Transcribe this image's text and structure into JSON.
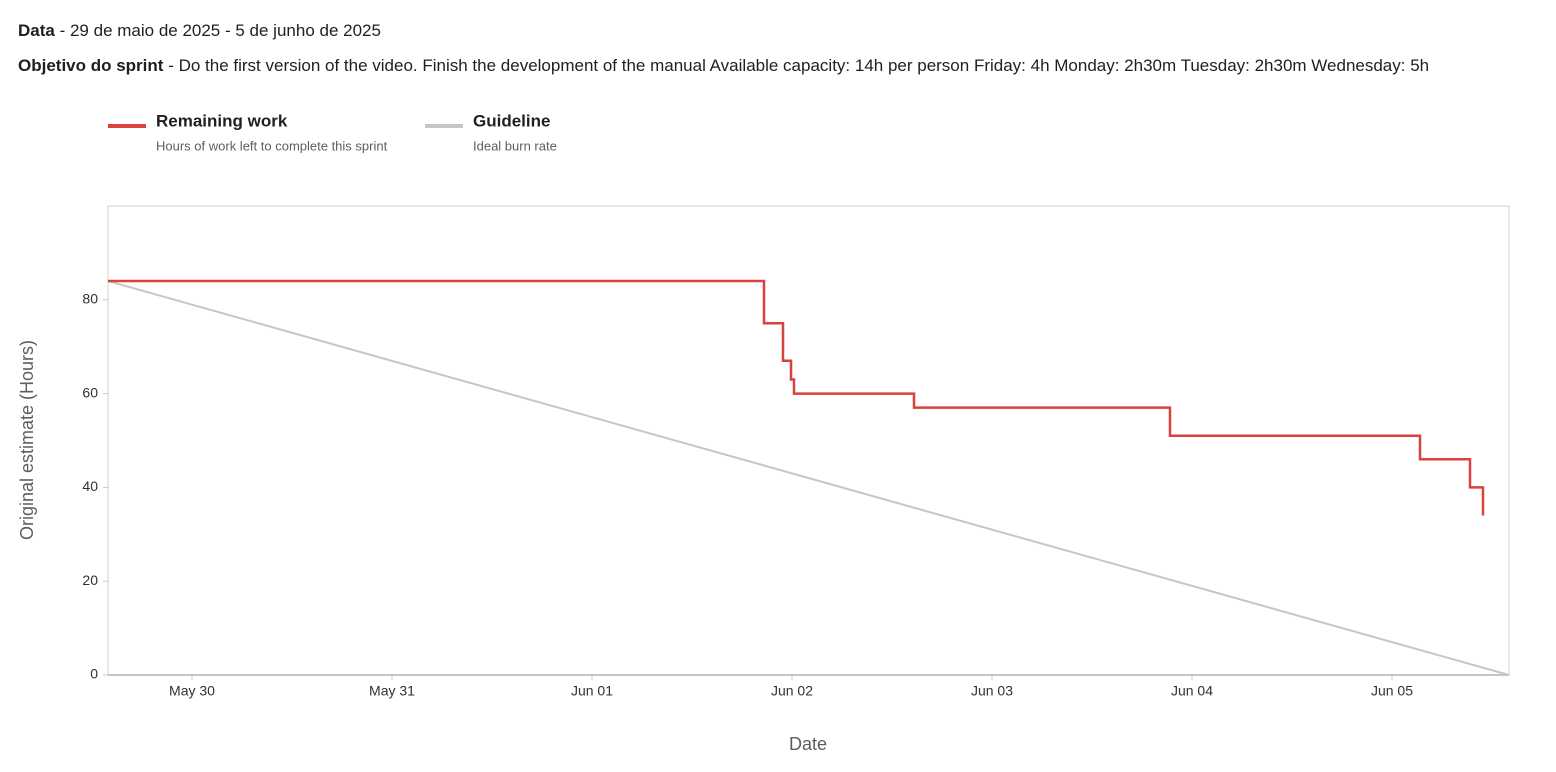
{
  "header": {
    "date_label": "Data",
    "date_value": "- 29 de maio de 2025 - 5 de junho de 2025",
    "goal_label": "Objetivo do sprint",
    "goal_value": "- Do the first version of the video. Finish the development of the manual Available capacity: 14h per person Friday: 4h Monday: 2h30m Tuesday: 2h30m Wednesday: 5h"
  },
  "chart_data": {
    "type": "line",
    "xlabel": "Date",
    "ylabel": "Original estimate (Hours)",
    "xlim": [
      0.58,
      7.585
    ],
    "ylim": [
      0,
      100
    ],
    "xticks": [
      {
        "value": 1,
        "label": "May 30"
      },
      {
        "value": 2,
        "label": "May 31"
      },
      {
        "value": 3,
        "label": "Jun 01"
      },
      {
        "value": 4,
        "label": "Jun 02"
      },
      {
        "value": 5,
        "label": "Jun 03"
      },
      {
        "value": 6,
        "label": "Jun 04"
      },
      {
        "value": 7,
        "label": "Jun 05"
      }
    ],
    "yticks": [
      0,
      20,
      40,
      60,
      80
    ],
    "grid": false,
    "series": [
      {
        "name": "Remaining work",
        "description": "Hours of work left to complete this sprint",
        "color": "#d9423d",
        "step": true,
        "x": [
          0.58,
          3.86,
          3.955,
          3.995,
          4.01,
          4.61,
          5.89,
          7.14,
          7.39,
          7.455
        ],
        "values": [
          84,
          75,
          67,
          63,
          60,
          57,
          51,
          46,
          40,
          34
        ]
      },
      {
        "name": "Guideline",
        "description": "Ideal burn rate",
        "color": "#c8c6c4",
        "step": false,
        "x": [
          0.58,
          7.585
        ],
        "values": [
          84,
          0
        ]
      }
    ]
  }
}
